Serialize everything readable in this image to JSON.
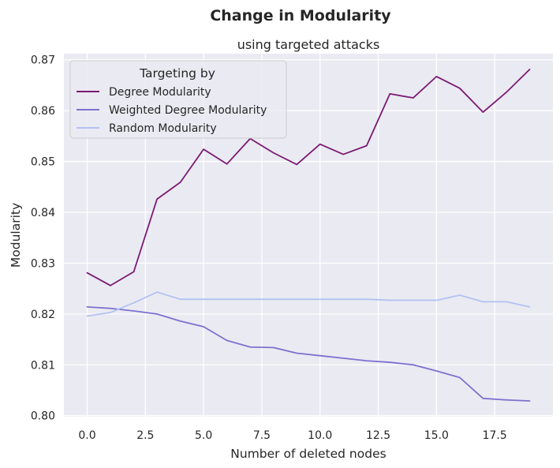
{
  "chart_data": {
    "type": "line",
    "title": "Change in Modularity",
    "subtitle": "using targeted attacks",
    "xlabel": "Number of deleted nodes",
    "ylabel": "Modularity",
    "xlim": [
      -1,
      20
    ],
    "ylim": [
      0.7998,
      0.8712
    ],
    "xticks": [
      0.0,
      2.5,
      5.0,
      7.5,
      10.0,
      12.5,
      15.0,
      17.5
    ],
    "xtick_labels": [
      "0.0",
      "2.5",
      "5.0",
      "7.5",
      "10.0",
      "12.5",
      "15.0",
      "17.5"
    ],
    "yticks": [
      0.8,
      0.81,
      0.82,
      0.83,
      0.84,
      0.85,
      0.86,
      0.87
    ],
    "ytick_labels": [
      "0.80",
      "0.81",
      "0.82",
      "0.83",
      "0.84",
      "0.85",
      "0.86",
      "0.87"
    ],
    "grid": true,
    "legend": {
      "title": "Targeting by",
      "placement": "top-left"
    },
    "x": [
      0,
      1,
      2,
      3,
      4,
      5,
      6,
      7,
      8,
      9,
      10,
      11,
      12,
      13,
      14,
      15,
      16,
      17,
      18,
      19
    ],
    "series": [
      {
        "name": "Degree Modularity",
        "color": "#7b1a72",
        "values": [
          0.8281,
          0.8256,
          0.8283,
          0.8426,
          0.8459,
          0.8524,
          0.8495,
          0.8545,
          0.8517,
          0.8494,
          0.8534,
          0.8514,
          0.8531,
          0.8633,
          0.8625,
          0.8667,
          0.8644,
          0.8597,
          0.8636,
          0.8681
        ]
      },
      {
        "name": "Weighted Degree Modularity",
        "color": "#7c71cf",
        "values": [
          0.8214,
          0.8211,
          0.8206,
          0.82,
          0.8186,
          0.8175,
          0.8148,
          0.8135,
          0.8134,
          0.8123,
          0.8118,
          0.8113,
          0.8108,
          0.8105,
          0.81,
          0.8088,
          0.8075,
          0.8034,
          0.8031,
          0.8029
        ]
      },
      {
        "name": "Random Modularity",
        "color": "#b3c2f2",
        "values": [
          0.8196,
          0.8203,
          0.8222,
          0.8243,
          0.8229,
          0.8229,
          0.8229,
          0.8229,
          0.8229,
          0.8229,
          0.8229,
          0.8229,
          0.8229,
          0.8227,
          0.8227,
          0.8227,
          0.8237,
          0.8224,
          0.8224,
          0.8214
        ]
      }
    ]
  }
}
